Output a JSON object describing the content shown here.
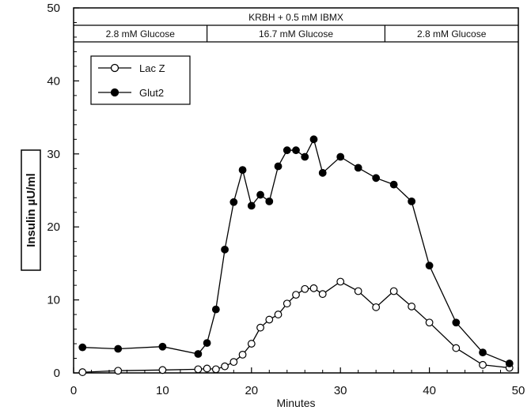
{
  "chart_data": {
    "type": "line",
    "title": "KRBH + 0.5 mM IBMX",
    "condition_bands": [
      {
        "label": "2.8 mM Glucose",
        "x_start": 0,
        "x_end": 15
      },
      {
        "label": "16.7 mM Glucose",
        "x_start": 15,
        "x_end": 35
      },
      {
        "label": "2.8 mM Glucose",
        "x_start": 35,
        "x_end": 50
      }
    ],
    "xlabel": "Minutes",
    "ylabel": "Insulin µU/ml",
    "xlim": [
      0,
      50
    ],
    "ylim": [
      0,
      50
    ],
    "x_ticks": [
      0,
      10,
      20,
      30,
      40,
      50
    ],
    "y_ticks": [
      0,
      10,
      20,
      30,
      40,
      50
    ],
    "grid": false,
    "legend_position": "top-left",
    "series": [
      {
        "name": "Lac Z",
        "marker": "open-circle",
        "x": [
          1,
          5,
          10,
          14,
          15,
          16,
          17,
          18,
          19,
          20,
          21,
          22,
          23,
          24,
          25,
          26,
          27,
          28,
          30,
          32,
          34,
          36,
          38,
          40,
          43,
          46,
          49
        ],
        "y": [
          0.1,
          0.3,
          0.4,
          0.5,
          0.6,
          0.5,
          0.9,
          1.5,
          2.5,
          4.0,
          6.2,
          7.3,
          8.0,
          9.5,
          10.7,
          11.5,
          11.6,
          10.8,
          12.5,
          11.2,
          9.0,
          11.2,
          9.1,
          6.9,
          3.4,
          1.1,
          0.7
        ],
        "color": "#000000"
      },
      {
        "name": "Glut2",
        "marker": "filled-circle",
        "x": [
          1,
          5,
          10,
          14,
          15,
          16,
          17,
          18,
          19,
          20,
          21,
          22,
          23,
          24,
          25,
          26,
          27,
          28,
          30,
          32,
          34,
          36,
          38,
          40,
          43,
          46,
          49
        ],
        "y": [
          3.5,
          3.3,
          3.6,
          2.6,
          4.1,
          8.7,
          16.9,
          23.4,
          27.8,
          22.9,
          24.4,
          23.5,
          28.3,
          30.5,
          30.5,
          29.6,
          32.0,
          27.4,
          29.6,
          28.1,
          26.7,
          25.8,
          23.5,
          14.7,
          6.9,
          2.8,
          1.3
        ],
        "color": "#000000"
      }
    ]
  }
}
